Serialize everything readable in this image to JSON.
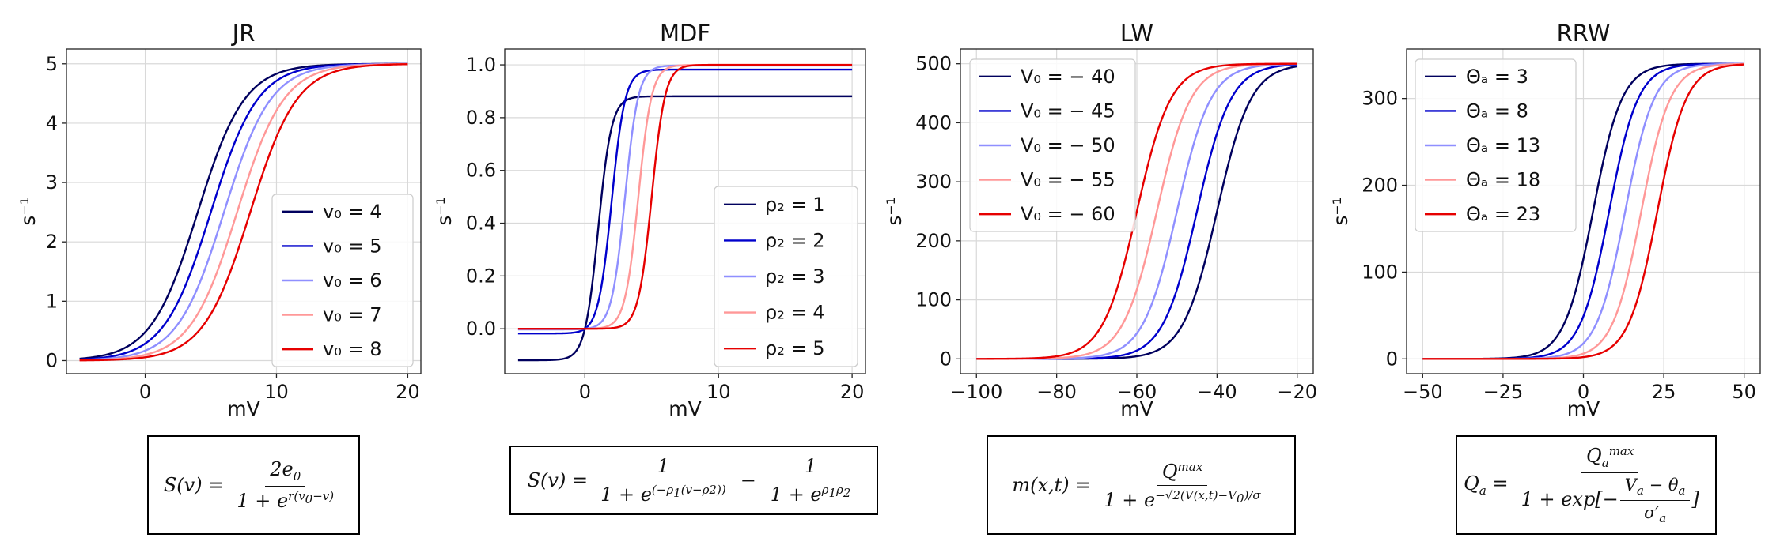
{
  "chart_data": [
    {
      "type": "line",
      "title": "JR",
      "xlabel": "mV",
      "ylabel": "s⁻¹",
      "xlim": [
        -6,
        21
      ],
      "ylim": [
        -0.22,
        5.25
      ],
      "xticks": [
        0,
        10,
        20
      ],
      "yticks": [
        0,
        1,
        2,
        3,
        4,
        5
      ],
      "ytick_labels": [
        "0",
        "1",
        "2",
        "3",
        "4",
        "5"
      ],
      "grid": true,
      "legend_position": "lower-right",
      "x": {
        "start": -5,
        "end": 20
      },
      "series": [
        {
          "name": "v₀ = 4",
          "color": "#00005e",
          "param": 4
        },
        {
          "name": "v₀ = 5",
          "color": "#0000cc",
          "param": 5
        },
        {
          "name": "v₀ = 6",
          "color": "#8f8fff",
          "param": 6
        },
        {
          "name": "v₀ = 7",
          "color": "#ff9898",
          "param": 7
        },
        {
          "name": "v₀ = 8",
          "color": "#e60000",
          "param": 8
        }
      ]
    },
    {
      "type": "line",
      "title": "MDF",
      "xlabel": "mV",
      "ylabel": "s⁻¹",
      "xlim": [
        -6,
        21
      ],
      "ylim": [
        -0.17,
        1.06
      ],
      "xticks": [
        0,
        10,
        20
      ],
      "yticks": [
        0,
        0.2,
        0.4,
        0.6,
        0.8,
        1.0
      ],
      "ytick_labels": [
        "0.0",
        "0.2",
        "0.4",
        "0.6",
        "0.8",
        "1.0"
      ],
      "grid": true,
      "legend_position": "lower-right",
      "x": {
        "start": -5,
        "end": 20
      },
      "series": [
        {
          "name": "ρ₂ = 1",
          "color": "#00005e",
          "param": 1
        },
        {
          "name": "ρ₂ = 2",
          "color": "#0000cc",
          "param": 2
        },
        {
          "name": "ρ₂ = 3",
          "color": "#8f8fff",
          "param": 3
        },
        {
          "name": "ρ₂ = 4",
          "color": "#ff9898",
          "param": 4
        },
        {
          "name": "ρ₂ = 5",
          "color": "#e60000",
          "param": 5
        }
      ]
    },
    {
      "type": "line",
      "title": "LW",
      "xlabel": "mV",
      "ylabel": "s⁻¹",
      "xlim": [
        -104,
        -16
      ],
      "ylim": [
        -25,
        525
      ],
      "xticks": [
        -100,
        -80,
        -60,
        -40,
        -20
      ],
      "yticks": [
        0,
        100,
        200,
        300,
        400,
        500
      ],
      "ytick_labels": [
        "0",
        "100",
        "200",
        "300",
        "400",
        "500"
      ],
      "grid": true,
      "legend_position": "upper-left",
      "x": {
        "start": -100,
        "end": -20
      },
      "series": [
        {
          "name": "V₀ = − 40",
          "color": "#00005e",
          "param": -40
        },
        {
          "name": "V₀ = − 45",
          "color": "#0000cc",
          "param": -45
        },
        {
          "name": "V₀ = − 50",
          "color": "#8f8fff",
          "param": -50
        },
        {
          "name": "V₀ = − 55",
          "color": "#ff9898",
          "param": -55
        },
        {
          "name": "V₀ = − 60",
          "color": "#e60000",
          "param": -60
        }
      ]
    },
    {
      "type": "line",
      "title": "RRW",
      "xlabel": "mV",
      "ylabel": "s⁻¹",
      "xlim": [
        -55,
        55
      ],
      "ylim": [
        -17,
        357
      ],
      "xticks": [
        -50,
        -25,
        0,
        25,
        50
      ],
      "yticks": [
        0,
        100,
        200,
        300
      ],
      "ytick_labels": [
        "0",
        "100",
        "200",
        "300"
      ],
      "grid": true,
      "legend_position": "upper-left",
      "x": {
        "start": -50,
        "end": 50
      },
      "series": [
        {
          "name": "Θₐ = 3",
          "color": "#00005e",
          "param": 3
        },
        {
          "name": "Θₐ = 8",
          "color": "#0000cc",
          "param": 8
        },
        {
          "name": "Θₐ = 13",
          "color": "#8f8fff",
          "param": 13
        },
        {
          "name": "Θₐ = 18",
          "color": "#ff9898",
          "param": 18
        },
        {
          "name": "Θₐ = 23",
          "color": "#e60000",
          "param": 23
        }
      ]
    }
  ]
}
